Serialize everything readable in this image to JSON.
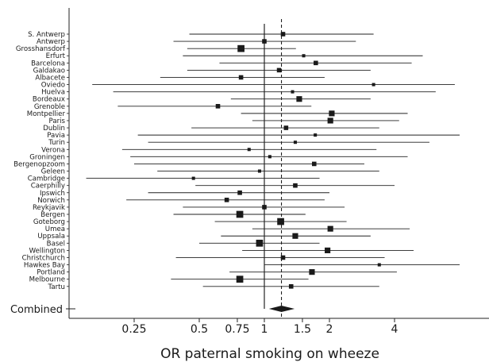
{
  "chart_data": {
    "type": "forest",
    "xlabel": "OR paternal smoking on wheeze",
    "xscale": "log",
    "xlim": [
      0.14,
      8.0
    ],
    "xticks": [
      0.25,
      0.5,
      0.75,
      1,
      1.5,
      2,
      4
    ],
    "xtick_labels": [
      "0.25",
      "0.5",
      "0.75",
      "1",
      "1.5",
      "2",
      "4"
    ],
    "reference_line": 1,
    "combined_line": 1.2,
    "studies": [
      {
        "name": "S. Antwerp",
        "or": 1.22,
        "lo": 0.45,
        "hi": 3.2,
        "weight": 2
      },
      {
        "name": "Antwerp",
        "or": 1.0,
        "lo": 0.38,
        "hi": 2.65,
        "weight": 2
      },
      {
        "name": "Grosshansdorf",
        "or": 0.78,
        "lo": 0.44,
        "hi": 1.4,
        "weight": 4
      },
      {
        "name": "Erfurt",
        "or": 1.52,
        "lo": 0.42,
        "hi": 5.4,
        "weight": 1
      },
      {
        "name": "Barcelona",
        "or": 1.73,
        "lo": 0.62,
        "hi": 4.8,
        "weight": 2
      },
      {
        "name": "Galdakao",
        "or": 1.17,
        "lo": 0.44,
        "hi": 3.1,
        "weight": 2
      },
      {
        "name": "Albacete",
        "or": 0.78,
        "lo": 0.33,
        "hi": 1.9,
        "weight": 2
      },
      {
        "name": "Oviedo",
        "or": 3.2,
        "lo": 0.16,
        "hi": 7.6,
        "weight": 1
      },
      {
        "name": "Huelva",
        "or": 1.35,
        "lo": 0.2,
        "hi": 6.2,
        "weight": 1
      },
      {
        "name": "Bordeaux",
        "or": 1.45,
        "lo": 0.7,
        "hi": 3.1,
        "weight": 3
      },
      {
        "name": "Grenoble",
        "or": 0.61,
        "lo": 0.21,
        "hi": 1.65,
        "weight": 2
      },
      {
        "name": "Montpellier",
        "or": 2.05,
        "lo": 0.78,
        "hi": 4.6,
        "weight": 3
      },
      {
        "name": "Paris",
        "or": 2.02,
        "lo": 0.88,
        "hi": 4.2,
        "weight": 3
      },
      {
        "name": "Dublin",
        "or": 1.26,
        "lo": 0.46,
        "hi": 3.4,
        "weight": 2
      },
      {
        "name": "Pavia",
        "or": 1.72,
        "lo": 0.26,
        "hi": 8.0,
        "weight": 1
      },
      {
        "name": "Turin",
        "or": 1.39,
        "lo": 0.29,
        "hi": 5.8,
        "weight": 1
      },
      {
        "name": "Verona",
        "or": 0.85,
        "lo": 0.22,
        "hi": 3.3,
        "weight": 1
      },
      {
        "name": "Groningen",
        "or": 1.06,
        "lo": 0.24,
        "hi": 4.6,
        "weight": 1
      },
      {
        "name": "Bergenopzoom",
        "or": 1.7,
        "lo": 0.25,
        "hi": 2.9,
        "weight": 2
      },
      {
        "name": "Geleen",
        "or": 0.95,
        "lo": 0.32,
        "hi": 3.4,
        "weight": 1
      },
      {
        "name": "Cambridge",
        "or": 0.47,
        "lo": 0.15,
        "hi": 1.8,
        "weight": 1
      },
      {
        "name": "Caerphilly",
        "or": 1.39,
        "lo": 0.48,
        "hi": 4.0,
        "weight": 2
      },
      {
        "name": "Ipswich",
        "or": 0.77,
        "lo": 0.29,
        "hi": 2.0,
        "weight": 2
      },
      {
        "name": "Norwich",
        "or": 0.67,
        "lo": 0.23,
        "hi": 1.9,
        "weight": 2
      },
      {
        "name": "Reykjavik",
        "or": 1.0,
        "lo": 0.42,
        "hi": 2.35,
        "weight": 2
      },
      {
        "name": "Bergen",
        "or": 0.77,
        "lo": 0.38,
        "hi": 1.55,
        "weight": 4
      },
      {
        "name": "Goteborg",
        "or": 1.19,
        "lo": 0.59,
        "hi": 2.4,
        "weight": 4
      },
      {
        "name": "Umea",
        "or": 2.02,
        "lo": 0.88,
        "hi": 4.7,
        "weight": 3
      },
      {
        "name": "Uppsala",
        "or": 1.39,
        "lo": 0.63,
        "hi": 3.1,
        "weight": 3
      },
      {
        "name": "Basel",
        "or": 0.95,
        "lo": 0.5,
        "hi": 1.8,
        "weight": 4
      },
      {
        "name": "Wellington",
        "or": 1.96,
        "lo": 0.79,
        "hi": 4.9,
        "weight": 3
      },
      {
        "name": "Christchurch",
        "or": 1.22,
        "lo": 0.39,
        "hi": 3.6,
        "weight": 2
      },
      {
        "name": "Hawkes Bay",
        "or": 3.4,
        "lo": 1.0,
        "hi": 8.0,
        "weight": 1
      },
      {
        "name": "Portland",
        "or": 1.66,
        "lo": 0.69,
        "hi": 4.1,
        "weight": 3
      },
      {
        "name": "Melbourne",
        "or": 0.77,
        "lo": 0.37,
        "hi": 1.6,
        "weight": 4
      },
      {
        "name": "Tartu",
        "or": 1.33,
        "lo": 0.52,
        "hi": 3.4,
        "weight": 2
      }
    ],
    "combined": {
      "name": "Combined",
      "or": 1.2,
      "lo": 1.05,
      "hi": 1.38
    }
  }
}
